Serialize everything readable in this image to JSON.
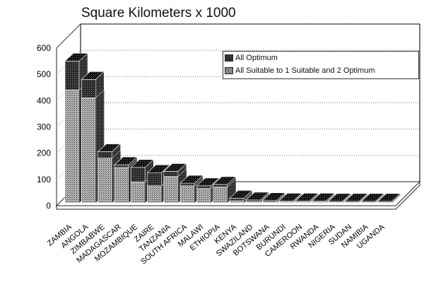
{
  "chart_data": {
    "type": "bar",
    "stacked": true,
    "three_d": true,
    "title": "Square Kilometers x 1000",
    "xlabel": "",
    "ylabel": "",
    "ylim": [
      0,
      600
    ],
    "yticks": [
      0,
      100,
      200,
      300,
      400,
      500,
      600
    ],
    "grid": true,
    "legend_position": "upper right",
    "categories": [
      "ZAMBIA",
      "ANGOLA",
      "ZIMBABWE",
      "MADAGASCAR",
      "MOZAMBIQUE",
      "ZAIRE",
      "TANZANIA",
      "SOUTH AFRICA",
      "MALAWI",
      "ETHIOPIA",
      "KENYA",
      "SWAZILAND",
      "BOTSWANA",
      "BURUNDI",
      "CAMEROON",
      "RWANDA",
      "NIGERIA",
      "SUDAN",
      "NAMIBIA",
      "UGANDA"
    ],
    "series": [
      {
        "name": "All Suitable to 1 Suitable and 2 Optimum",
        "values": [
          430,
          400,
          170,
          135,
          80,
          65,
          100,
          65,
          55,
          60,
          8,
          5,
          4,
          3,
          3,
          3,
          2,
          2,
          2,
          2
        ]
      },
      {
        "name": "All Optimum",
        "values": [
          110,
          70,
          25,
          10,
          55,
          50,
          20,
          10,
          10,
          10,
          10,
          6,
          5,
          4,
          4,
          4,
          4,
          4,
          4,
          4
        ]
      }
    ]
  },
  "legend": {
    "items": [
      {
        "label": "All Optimum"
      },
      {
        "label": "All Suitable to 1 Suitable and 2 Optimum"
      }
    ]
  }
}
